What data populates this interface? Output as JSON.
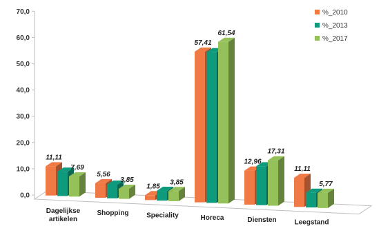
{
  "chart_data": {
    "type": "bar",
    "title": "",
    "xlabel": "",
    "ylabel": "",
    "ylim": [
      0,
      70
    ],
    "yticks": [
      "0,0",
      "10,0",
      "20,0",
      "30,0",
      "40,0",
      "50,0",
      "60,0",
      "70,0"
    ],
    "ytick_values": [
      0,
      10,
      20,
      30,
      40,
      50,
      60,
      70
    ],
    "categories": [
      [
        "Dagelijkse",
        "artikelen"
      ],
      [
        "Shopping"
      ],
      [
        "Speciality"
      ],
      [
        "Horeca"
      ],
      [
        "Diensten"
      ],
      [
        "Leegstand"
      ]
    ],
    "series": [
      {
        "name": "%_2010",
        "color": "#f07a45",
        "values": [
          11.11,
          5.56,
          1.85,
          57.41,
          12.96,
          11.11
        ],
        "labels": [
          "11,11",
          "5,56",
          "1,85",
          "57,41",
          "12,96",
          "11,11"
        ]
      },
      {
        "name": "%_2013",
        "color": "#0e9a7c",
        "values": [
          9.3,
          5.2,
          3.7,
          57.41,
          14.8,
          5.6
        ],
        "labels": [
          "",
          "",
          "",
          "",
          "",
          ""
        ]
      },
      {
        "name": "%_2017",
        "color": "#94c15a",
        "values": [
          7.69,
          3.85,
          3.85,
          61.54,
          17.31,
          5.77
        ],
        "labels": [
          "7,69",
          "3,85",
          "3,85",
          "61,54",
          "17,31",
          "5,77"
        ]
      }
    ],
    "legend_position": "top-right",
    "grid": false
  }
}
